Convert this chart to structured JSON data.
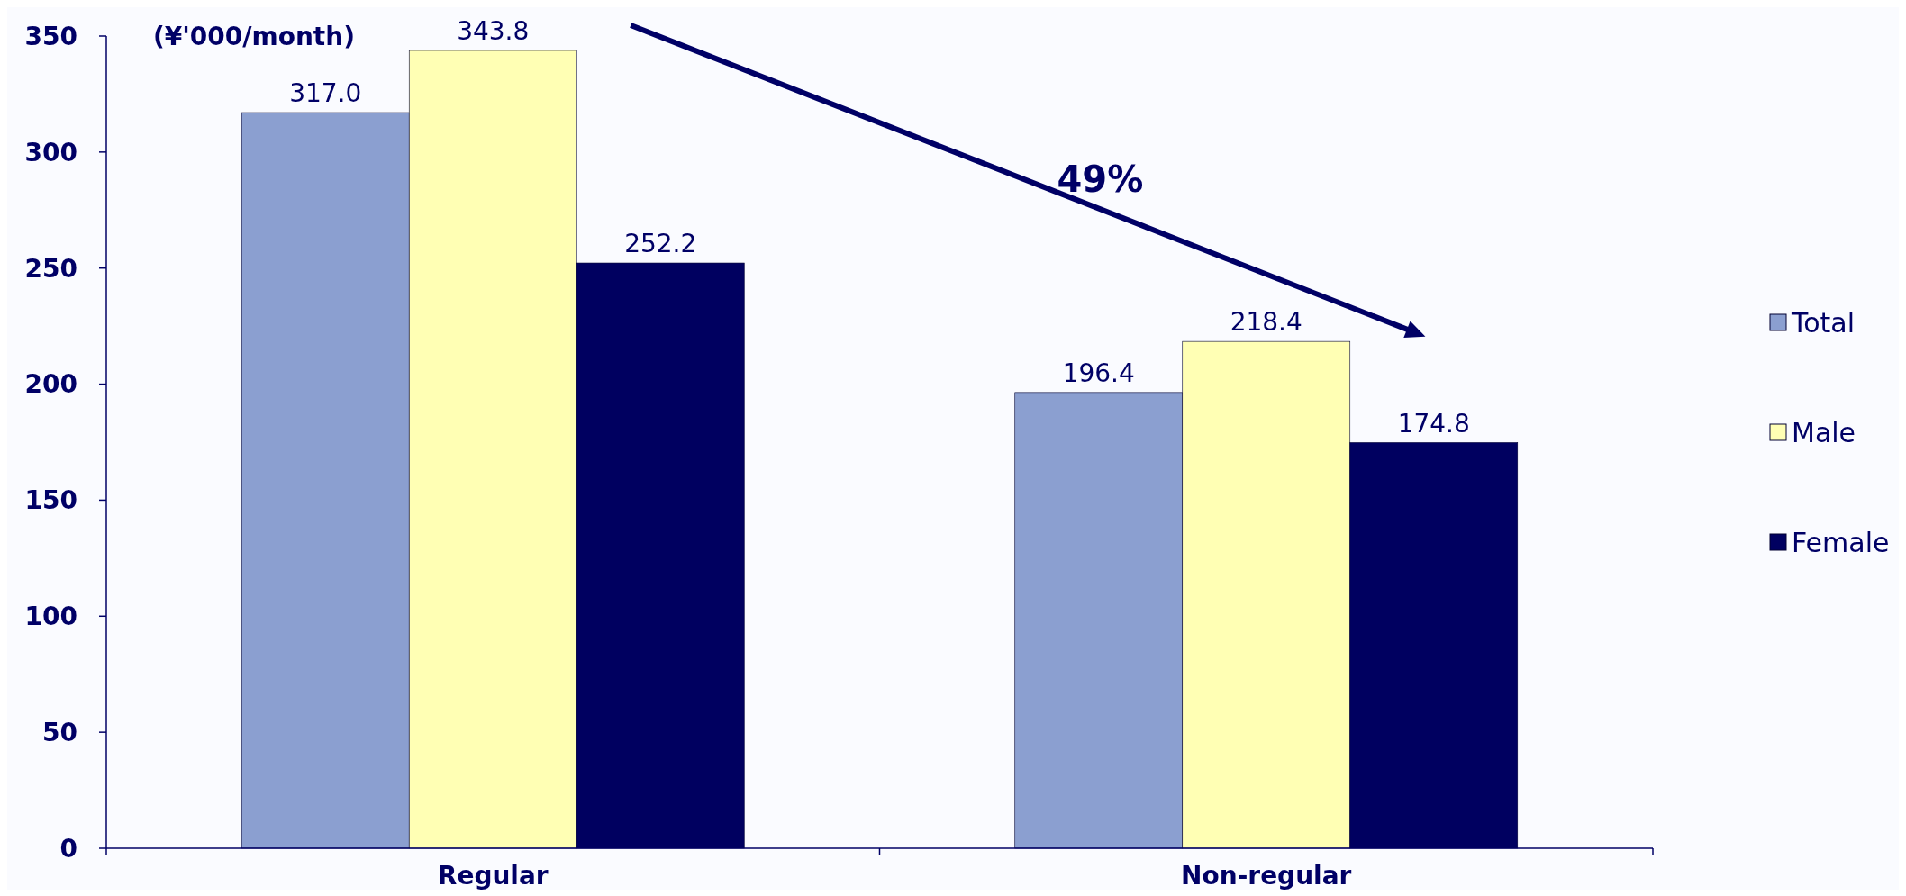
{
  "chart_data": {
    "type": "bar",
    "ylabel": "(¥'000/month)",
    "categories": [
      "Regular",
      "Non-regular"
    ],
    "series": [
      {
        "name": "Total",
        "color": "#8b9fd0",
        "values": [
          317.0,
          196.4
        ],
        "value_labels": [
          "317.0",
          "196.4"
        ]
      },
      {
        "name": "Male",
        "color": "#ffffb4",
        "values": [
          343.8,
          218.4
        ],
        "value_labels": [
          "343.8",
          "218.4"
        ]
      },
      {
        "name": "Female",
        "color": "#000060",
        "values": [
          252.2,
          174.8
        ],
        "value_labels": [
          "252.2",
          "174.8"
        ]
      }
    ],
    "ylim": [
      0,
      350
    ],
    "yticks": [
      0,
      50,
      100,
      150,
      200,
      250,
      300,
      350
    ],
    "legend": "right",
    "grid": false,
    "annotations": [
      "49%"
    ]
  }
}
